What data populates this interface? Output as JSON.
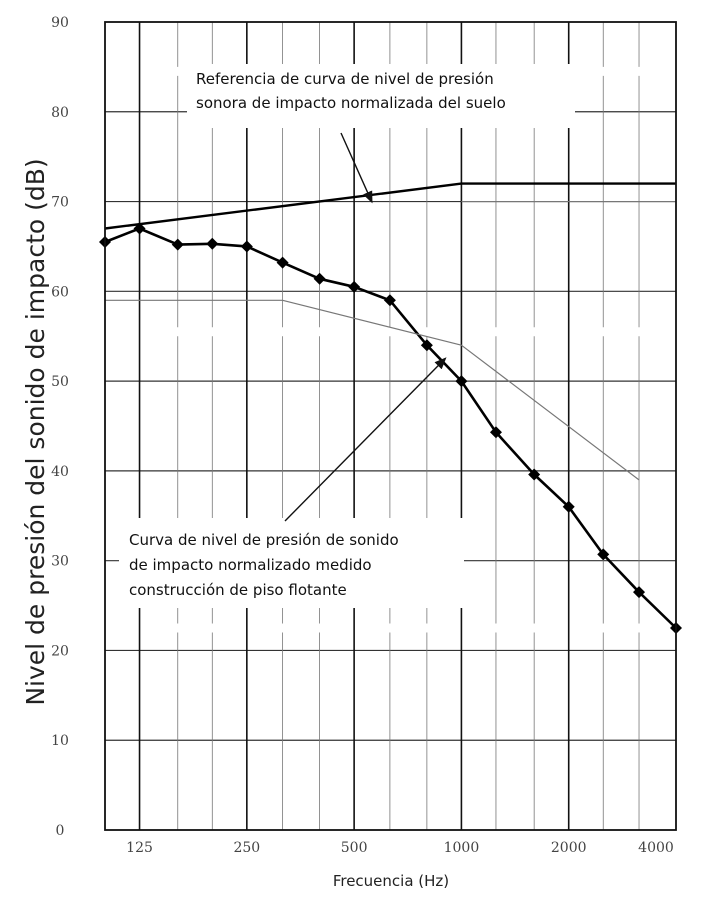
{
  "chart_data": {
    "type": "line",
    "title": "",
    "xlabel": "Frecuencia (Hz)",
    "ylabel": "Nivel de presión del sonido de impacto (dB)",
    "x_scale": "log",
    "xlim": [
      100,
      4000
    ],
    "ylim": [
      0,
      90
    ],
    "grid": true,
    "y_ticks": [
      "0",
      "10",
      "20",
      "30",
      "40",
      "50",
      "60",
      "70",
      "80",
      "90"
    ],
    "x_ticks": [
      "125",
      "250",
      "500",
      "1000",
      "2000",
      "4000"
    ],
    "x_tick_values": [
      125,
      250,
      500,
      1000,
      2000,
      4000
    ],
    "series": [
      {
        "x": [
          100,
          125,
          160,
          200,
          250,
          315,
          400,
          500,
          630,
          800,
          1000,
          1250,
          1600,
          2000,
          2500,
          3150,
          4000
        ],
        "values": [
          65.5,
          67,
          65.2,
          65.3,
          65,
          63.2,
          61.4,
          60.5,
          59,
          54,
          50,
          44.3,
          39.6,
          36,
          30.7,
          26.5,
          22.5
        ],
        "marker": "diamond",
        "color": "#000000"
      },
      {
        "x": [
          100,
          1000,
          4000
        ],
        "values": [
          67,
          72,
          72
        ],
        "marker": "none",
        "color": "#000000"
      },
      {
        "x": [
          100,
          315,
          1000,
          3150
        ],
        "values": [
          59,
          59,
          54,
          39
        ],
        "marker": "none",
        "color": "#777777"
      },
      {
        "x": [
          1000,
          4000
        ],
        "values": [
          70,
          70
        ],
        "marker": "none",
        "color": "#777777"
      }
    ],
    "annotations": [
      {
        "lines": [
          "Referencia de curva de nivel de presión",
          "sonora de impacto normalizada del suelo"
        ],
        "arrow_to": {
          "x": 560,
          "y": 70
        }
      },
      {
        "lines": [
          "Curva de nivel de presión de sonido",
          "de impacto normalizado medido",
          "construcción de piso flotante"
        ],
        "arrow_to": {
          "x": 900,
          "y": 52.5
        }
      }
    ]
  }
}
